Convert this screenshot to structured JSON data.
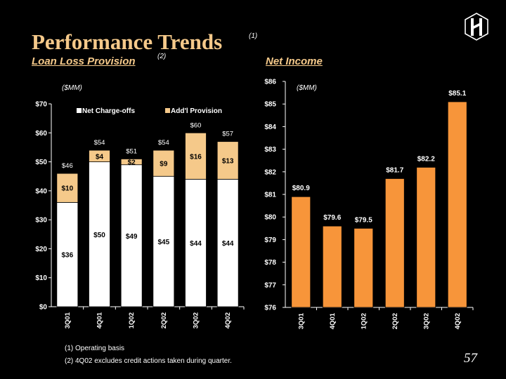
{
  "title": "Performance Trends",
  "title_note": "(1)",
  "left_subtitle": "Loan Loss Provision",
  "left_subtitle_note": "(2)",
  "right_subtitle": "Net Income",
  "left_unit": "($MM)",
  "right_unit": "($MM)",
  "footnotes": [
    "(1)   Operating basis",
    "(2)   4Q02 excludes credit actions taken during quarter."
  ],
  "page_number": "57",
  "colors": {
    "background": "#000000",
    "title": "#F5C98A",
    "chargeoffs": "#FFFFFF",
    "provision": "#F5C98A",
    "net_income": "#F7953A"
  },
  "chart_data": [
    {
      "type": "bar",
      "stacked": true,
      "categories": [
        "3Q01",
        "4Q01",
        "1Q02",
        "2Q02",
        "3Q02",
        "4Q02"
      ],
      "series": [
        {
          "name": "Net Charge-offs",
          "values": [
            36,
            50,
            49,
            45,
            44,
            44
          ],
          "labels": [
            "$36",
            "$50",
            "$49",
            "$45",
            "$44",
            "$44"
          ]
        },
        {
          "name": "Add'l Provision",
          "values": [
            10,
            4,
            2,
            9,
            16,
            13
          ],
          "labels": [
            "$10",
            "$4",
            "$2",
            "$9",
            "$16",
            "$13"
          ]
        }
      ],
      "totals": [
        46,
        54,
        51,
        54,
        60,
        57
      ],
      "total_labels": [
        "$46",
        "$54",
        "$51",
        "$54",
        "$60",
        "$57"
      ],
      "ylim": [
        0,
        70
      ],
      "yticks": [
        0,
        10,
        20,
        30,
        40,
        50,
        60,
        70
      ],
      "ytick_labels": [
        "$0",
        "$10",
        "$20",
        "$30",
        "$40",
        "$50",
        "$60",
        "$70"
      ],
      "legend": "top"
    },
    {
      "type": "bar",
      "categories": [
        "3Q01",
        "4Q01",
        "1Q02",
        "2Q02",
        "3Q02",
        "4Q02"
      ],
      "values": [
        80.9,
        79.6,
        79.5,
        81.7,
        82.2,
        85.1
      ],
      "labels": [
        "$80.9",
        "$79.6",
        "$79.5",
        "$81.7",
        "$82.2",
        "$85.1"
      ],
      "ylim": [
        76,
        86
      ],
      "yticks": [
        76,
        77,
        78,
        79,
        80,
        81,
        82,
        83,
        84,
        85,
        86
      ],
      "ytick_labels": [
        "$76",
        "$77",
        "$78",
        "$79",
        "$80",
        "$81",
        "$82",
        "$83",
        "$84",
        "$85",
        "$86"
      ]
    }
  ]
}
